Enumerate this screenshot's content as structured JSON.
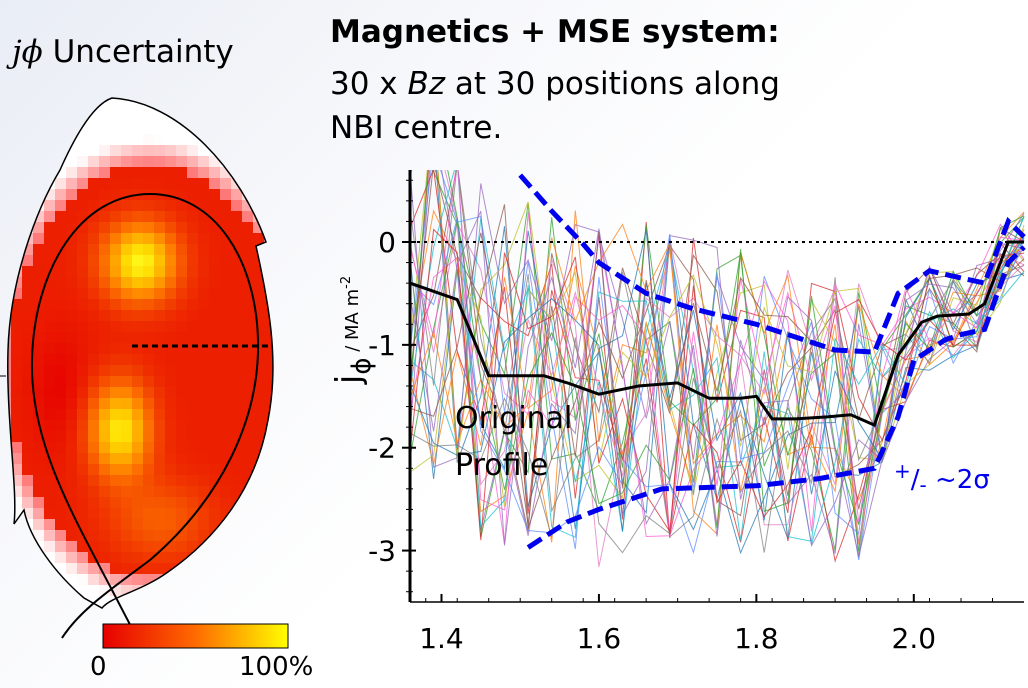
{
  "left_panel": {
    "title_symbol": "jϕ",
    "title_text": " Uncertainty",
    "colorbar_min": "0",
    "colorbar_max": "100%"
  },
  "heading": "Magnetics + MSE system:",
  "subtitle_part1": "30 x ",
  "subtitle_italic": "Bz",
  "subtitle_part2": " at 30 positions along",
  "subtitle_line2": "NBI centre.",
  "chart_data": {
    "type": "line",
    "ylabel_main": "j",
    "ylabel_sub": "ϕ",
    "ylabel_unit": " / MA m",
    "ylabel_exp": "-2",
    "xlim": [
      1.36,
      2.14
    ],
    "ylim": [
      -3.5,
      0.7
    ],
    "x_ticks": [
      "1.4",
      "1.6",
      "1.8",
      "2.0"
    ],
    "y_ticks": [
      "0",
      "-1",
      "-2",
      "-3"
    ],
    "zero_line": 0,
    "original_profile": {
      "label_line1": "Original",
      "label_line2": "Profile",
      "color": "#000000",
      "x": [
        1.36,
        1.42,
        1.46,
        1.53,
        1.56,
        1.6,
        1.65,
        1.7,
        1.74,
        1.78,
        1.8,
        1.82,
        1.85,
        1.89,
        1.92,
        1.95,
        1.98,
        2.01,
        2.03,
        2.07,
        2.09,
        2.12,
        2.14
      ],
      "y": [
        -0.4,
        -0.56,
        -1.3,
        -1.3,
        -1.37,
        -1.48,
        -1.4,
        -1.37,
        -1.52,
        -1.52,
        -1.5,
        -1.72,
        -1.72,
        -1.7,
        -1.68,
        -1.78,
        -1.1,
        -0.78,
        -0.72,
        -0.7,
        -0.6,
        0.0,
        0.0
      ]
    },
    "band_upper": {
      "name": "+/- ~2σ",
      "color": "#0000ee",
      "x": [
        1.5,
        1.54,
        1.58,
        1.6,
        1.66,
        1.72,
        1.8,
        1.86,
        1.9,
        1.95,
        1.98,
        2.02,
        2.06,
        2.09,
        2.12,
        2.14
      ],
      "y": [
        0.65,
        0.3,
        -0.02,
        -0.2,
        -0.5,
        -0.65,
        -0.8,
        -0.95,
        -1.05,
        -1.07,
        -0.5,
        -0.28,
        -0.35,
        -0.4,
        0.2,
        0.05
      ]
    },
    "band_lower": {
      "color": "#0000ee",
      "x": [
        1.51,
        1.56,
        1.6,
        1.68,
        1.8,
        1.88,
        1.95,
        1.98,
        2.0,
        2.04,
        2.06,
        2.09,
        2.12,
        2.14
      ],
      "y": [
        -2.97,
        -2.72,
        -2.6,
        -2.4,
        -2.37,
        -2.3,
        -2.2,
        -1.7,
        -1.15,
        -0.95,
        -0.9,
        -0.85,
        -0.2,
        -0.05
      ]
    },
    "annotation_plus": "+",
    "annotation_slash": "/",
    "annotation_minus": "-",
    "annotation_sigma": " ~2σ",
    "realizations_count": 30,
    "realization_colors": [
      "#1f77b4",
      "#ff7f0e",
      "#2ca02c",
      "#d62728",
      "#9467bd",
      "#8c564b",
      "#e377c2",
      "#7f7f7f",
      "#bcbd22",
      "#17becf",
      "#5b8cff",
      "#ff5bd1"
    ]
  },
  "colors": {
    "band": "#0000ee",
    "heatmap_low": "#e60000",
    "heatmap_high": "#ffff00"
  }
}
